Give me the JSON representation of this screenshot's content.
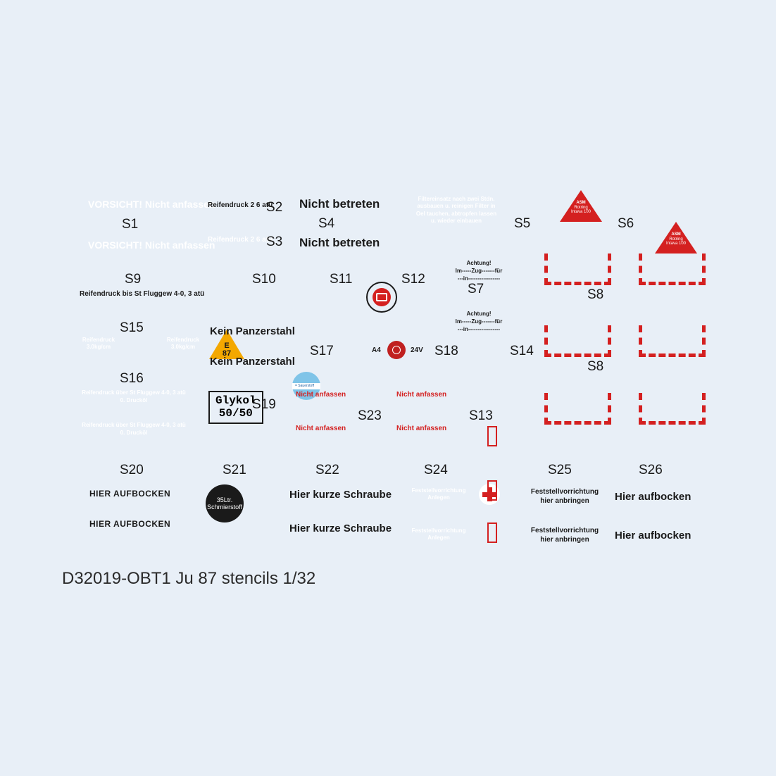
{
  "title": "D32019-OBT1 Ju 87 stencils 1/32",
  "labels": {
    "s1": "S1",
    "s2": "S2",
    "s3": "S3",
    "s4": "S4",
    "s5": "S5",
    "s6": "S6",
    "s7": "S7",
    "s8a": "S8",
    "s8b": "S8",
    "s9": "S9",
    "s10": "S10",
    "s11": "S11",
    "s12": "S12",
    "s13": "S13",
    "s14": "S14",
    "s15": "S15",
    "s16": "S16",
    "s17": "S17",
    "s18": "S18",
    "s19": "S19",
    "s20": "S20",
    "s21": "S21",
    "s22": "S22",
    "s23": "S23",
    "s24": "S24",
    "s25": "S25",
    "s26": "S26"
  },
  "stencils": {
    "s1a": "VORSICHT! Nicht anfassen",
    "s1b": "VORSICHT! Nicht anfassen",
    "s2": "Reifendruck 2 6 atü",
    "s3": "Reifendruck 2 6 atü",
    "s4a": "Nicht betreten",
    "s4b": "Nicht betreten",
    "s5": "Filtereinsatz nach zwei Stdn.\nausbauen u. reinigen Filter in\nOel tauchen, abtropfen lassen\nu. wieder einbauen",
    "s7a": "Achtung!\nIm-----Zug-------für\n---in-----------------",
    "s7b": "Achtung!\nIm-----Zug-------für\n---in-----------------",
    "s9": "Reifendruck bis St Fluggew 4-0, 3 atü",
    "s15a": "Reifendruck\n3.0kg/cm",
    "s15b": "Reifendruck\n3.0kg/cm",
    "s16a": "Reifendruck über St Fluggew 4-0, 3 atü\n0. Drucköl",
    "s16b": "Reifendruck über St Fluggew 4-0, 3 atü\n0. Drucköl",
    "s17a": "Kein Panzerstahl",
    "s17b": "Kein Panzerstahl",
    "s18a": "A4",
    "s18b": "24V",
    "s19a": "Glykol",
    "s19b": "50/50",
    "s20a": "HIER AUFBOCKEN",
    "s20b": "HIER AUFBOCKEN",
    "s21a": "35Ltr.",
    "s21b": "Schmierstoff",
    "s22a": "Hier kurze Schraube",
    "s22b": "Hier kurze Schraube",
    "s23a": "Nicht anfassen",
    "s23b": "Nicht anfassen",
    "s23c": "Nicht anfassen",
    "s23d": "Nicht anfassen",
    "s24a": "Feststellvorrichtung\nAnlegen",
    "s24b": "Feststellvorrichtung\nAnlegen",
    "s25a": "Feststellvorrichtung\nhier anbringen",
    "s25b": "Feststellvorrichtung\nhier anbringen",
    "s26a": "Hier aufbocken",
    "s26b": "Hier aufbocken",
    "asm1": "ASM",
    "asm2": "Rotring\nIntava 100",
    "e87a": "E",
    "e87b": "87"
  },
  "colors": {
    "bg": "#e8eff7",
    "black": "#1a1a1a",
    "white": "#ffffff",
    "red": "#d42020",
    "orange": "#f4a800",
    "blue": "#7fc4e8"
  }
}
